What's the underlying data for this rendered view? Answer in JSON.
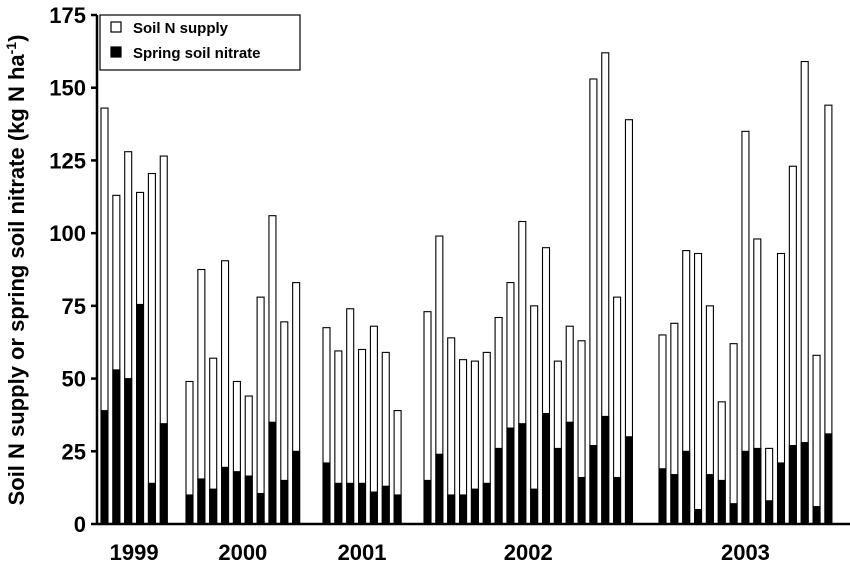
{
  "chart_data": {
    "type": "bar",
    "ylabel": "Soil N supply or spring soil nitrate (kg N ha",
    "ylabel_sup": "-1",
    "ylabel_end": ")",
    "ylim": [
      0,
      175
    ],
    "yticks": [
      "0",
      "25",
      "50",
      "75",
      "100",
      "125",
      "150",
      "175"
    ],
    "legend": {
      "placement": "top-left",
      "supply_label": "Soil N supply",
      "nitrate_label": "Spring soil nitrate"
    },
    "colors": {
      "supply_fill": "#ffffff",
      "nitrate_fill": "#000000",
      "outline": "#000000"
    },
    "groups": [
      {
        "year": "1999",
        "supply": [
          143,
          113,
          128,
          114,
          120.5,
          126.5
        ],
        "nitrate": [
          39,
          53,
          50,
          75.5,
          14,
          34.5
        ]
      },
      {
        "year": "2000",
        "supply": [
          49,
          87.5,
          57,
          90.5,
          49,
          44,
          78,
          106,
          69.5,
          83
        ],
        "nitrate": [
          10,
          15.5,
          12,
          19.5,
          18,
          16.5,
          10.5,
          35,
          15,
          25
        ]
      },
      {
        "year": "2001",
        "supply": [
          67.5,
          59.5,
          74,
          60,
          68,
          59,
          39
        ],
        "nitrate": [
          21,
          14,
          14,
          14,
          11,
          13,
          10
        ]
      },
      {
        "year": "2002",
        "supply": [
          73,
          99,
          64,
          56.5,
          56,
          59,
          71,
          83,
          104,
          75,
          95,
          56,
          68,
          63,
          153,
          162,
          78,
          139
        ],
        "nitrate": [
          15,
          24,
          10,
          10,
          12,
          14,
          26,
          33,
          34.5,
          12,
          38,
          26,
          35,
          16,
          27,
          37,
          16,
          30
        ]
      },
      {
        "year": "2003",
        "supply": [
          65,
          69,
          94,
          93,
          75,
          42,
          62,
          135,
          98,
          26,
          93,
          123,
          159,
          58,
          144
        ],
        "nitrate": [
          19,
          17,
          25,
          5,
          17,
          15,
          7,
          25,
          26,
          8,
          21,
          27,
          28,
          6,
          31
        ]
      }
    ]
  }
}
